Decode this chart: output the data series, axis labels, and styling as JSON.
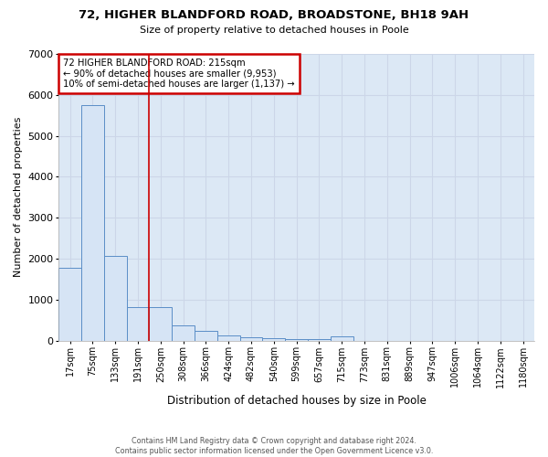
{
  "title": "72, HIGHER BLANDFORD ROAD, BROADSTONE, BH18 9AH",
  "subtitle": "Size of property relative to detached houses in Poole",
  "xlabel": "Distribution of detached houses by size in Poole",
  "ylabel": "Number of detached properties",
  "bin_labels": [
    "17sqm",
    "75sqm",
    "133sqm",
    "191sqm",
    "250sqm",
    "308sqm",
    "366sqm",
    "424sqm",
    "482sqm",
    "540sqm",
    "599sqm",
    "657sqm",
    "715sqm",
    "773sqm",
    "831sqm",
    "889sqm",
    "947sqm",
    "1006sqm",
    "1064sqm",
    "1122sqm",
    "1180sqm"
  ],
  "bar_heights": [
    1780,
    5750,
    2060,
    820,
    820,
    380,
    240,
    115,
    90,
    55,
    45,
    30,
    100,
    0,
    0,
    0,
    0,
    0,
    0,
    0,
    0
  ],
  "bar_color": "#d6e4f5",
  "bar_edge_color": "#5b8ec7",
  "red_line_x": 3.5,
  "annotation_title": "72 HIGHER BLANDFORD ROAD: 215sqm",
  "annotation_line1": "← 90% of detached houses are smaller (9,953)",
  "annotation_line2": "10% of semi-detached houses are larger (1,137) →",
  "annotation_box_color": "#ffffff",
  "annotation_border_color": "#cc0000",
  "grid_color": "#ccd6e8",
  "plot_bg_color": "#dce8f5",
  "fig_bg_color": "#ffffff",
  "ylim": [
    0,
    7000
  ],
  "yticks": [
    0,
    1000,
    2000,
    3000,
    4000,
    5000,
    6000,
    7000
  ],
  "footnote_line1": "Contains HM Land Registry data © Crown copyright and database right 2024.",
  "footnote_line2": "Contains public sector information licensed under the Open Government Licence v3.0."
}
